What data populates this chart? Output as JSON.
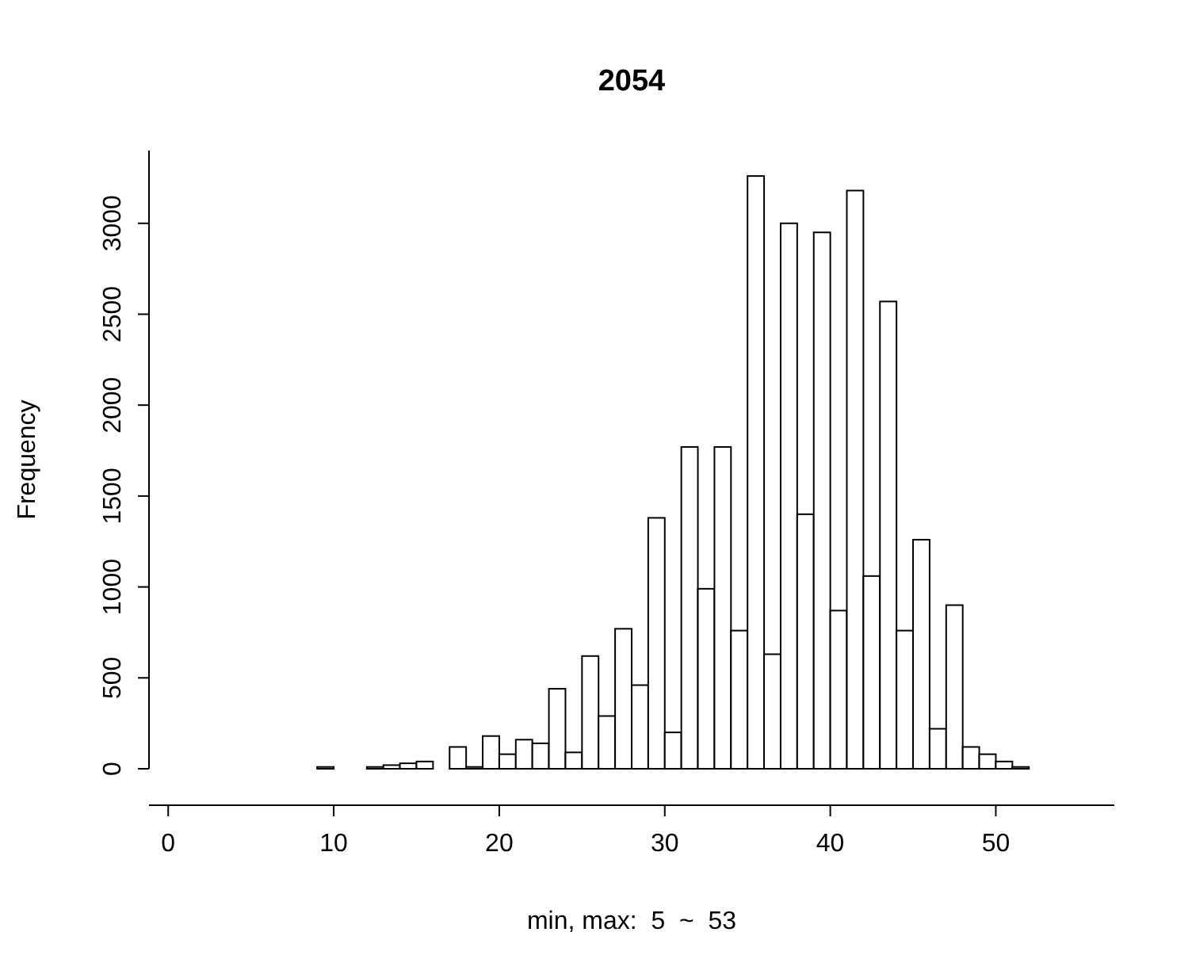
{
  "chart_data": {
    "type": "histogram",
    "title": "2054",
    "xlabel": "min, max:  5  ~  53",
    "ylabel": "Frequency",
    "bins": [
      1,
      2,
      3,
      4,
      5,
      6,
      7,
      8,
      9,
      10,
      11,
      12,
      13,
      14,
      15,
      16,
      17,
      18,
      19,
      20,
      21,
      22,
      23,
      24,
      25,
      26,
      27,
      28,
      29,
      30,
      31,
      32,
      33,
      34,
      35,
      36,
      37,
      38,
      39,
      40,
      41,
      42,
      43,
      44,
      45,
      46,
      47,
      48,
      49,
      50,
      51,
      52,
      53,
      54,
      55
    ],
    "values": [
      0,
      0,
      0,
      0,
      0,
      0,
      0,
      0,
      10,
      0,
      0,
      10,
      20,
      30,
      40,
      0,
      120,
      10,
      180,
      80,
      160,
      140,
      440,
      90,
      620,
      290,
      770,
      460,
      1380,
      200,
      1770,
      990,
      1770,
      760,
      3260,
      630,
      3000,
      1400,
      2950,
      870,
      3180,
      1060,
      2570,
      760,
      1260,
      220,
      900,
      120,
      80,
      40,
      10,
      0,
      0,
      0
    ],
    "color": "#ffffff",
    "xlim": [
      -1.16,
      57.16
    ],
    "ylim": [
      0,
      3400
    ],
    "xticks": [
      0,
      10,
      20,
      30,
      40,
      50
    ],
    "yticks": [
      0,
      500,
      1000,
      1500,
      2000,
      2500,
      3000
    ],
    "grid": false
  }
}
